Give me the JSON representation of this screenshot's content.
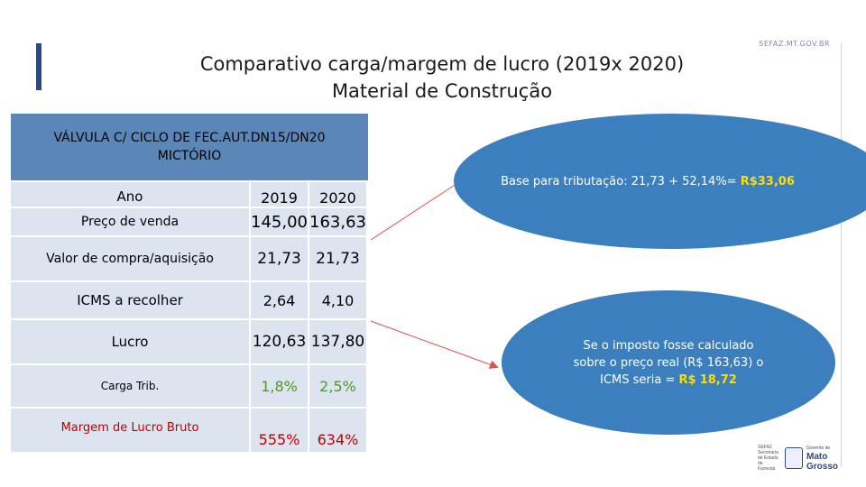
{
  "header": {
    "title_line1": "Comparativo carga/margem de lucro (2019x 2020)",
    "title_line2": "Material de Construção",
    "site": "SEFAZ.MT.GOV.BR"
  },
  "product": {
    "line1": "VÁLVULA C/ CICLO DE FEC.AUT.DN15/DN20",
    "line2": "MICTÓRIO"
  },
  "table": {
    "rows": [
      {
        "label": "Ano",
        "v2019": "2019",
        "v2020": "2020"
      },
      {
        "label": "Preço de venda",
        "v2019": "145,00",
        "v2020": "163,63"
      },
      {
        "label": "Valor de compra/aquisição",
        "v2019": "21,73",
        "v2020": "21,73"
      },
      {
        "label": "ICMS a recolher",
        "v2019": "2,64",
        "v2020": "4,10"
      },
      {
        "label": "Lucro",
        "v2019": "120,63",
        "v2020": "137,80"
      },
      {
        "label": "Carga Trib.",
        "v2019": "1,8%",
        "v2020": "2,5%"
      },
      {
        "label": "Margem de Lucro Bruto",
        "v2019": "555%",
        "v2020": "634%"
      }
    ]
  },
  "callout1": {
    "text": "Base para tributação: 21,73 + 52,14%= ",
    "highlight": "R$33,06"
  },
  "callout2": {
    "text": "Se o imposto fosse calculado sobre o preço real (R$ 163,63) o ICMS seria = ",
    "highlight_prefix": "R$",
    "highlight": "18,72"
  },
  "footer_logo": {
    "left": "SEFAZ Secretaria de Estado de Fazenda",
    "small": "Governo de",
    "big1": "Mato",
    "big2": "Grosso"
  },
  "colors": {
    "header_blue": "#5b86b8",
    "row_fill": "#dbe4ef",
    "bubble": "#3b7fbf",
    "highlight_yellow": "#ffdd00",
    "green": "#4c9a1f",
    "red": "#c00000"
  }
}
